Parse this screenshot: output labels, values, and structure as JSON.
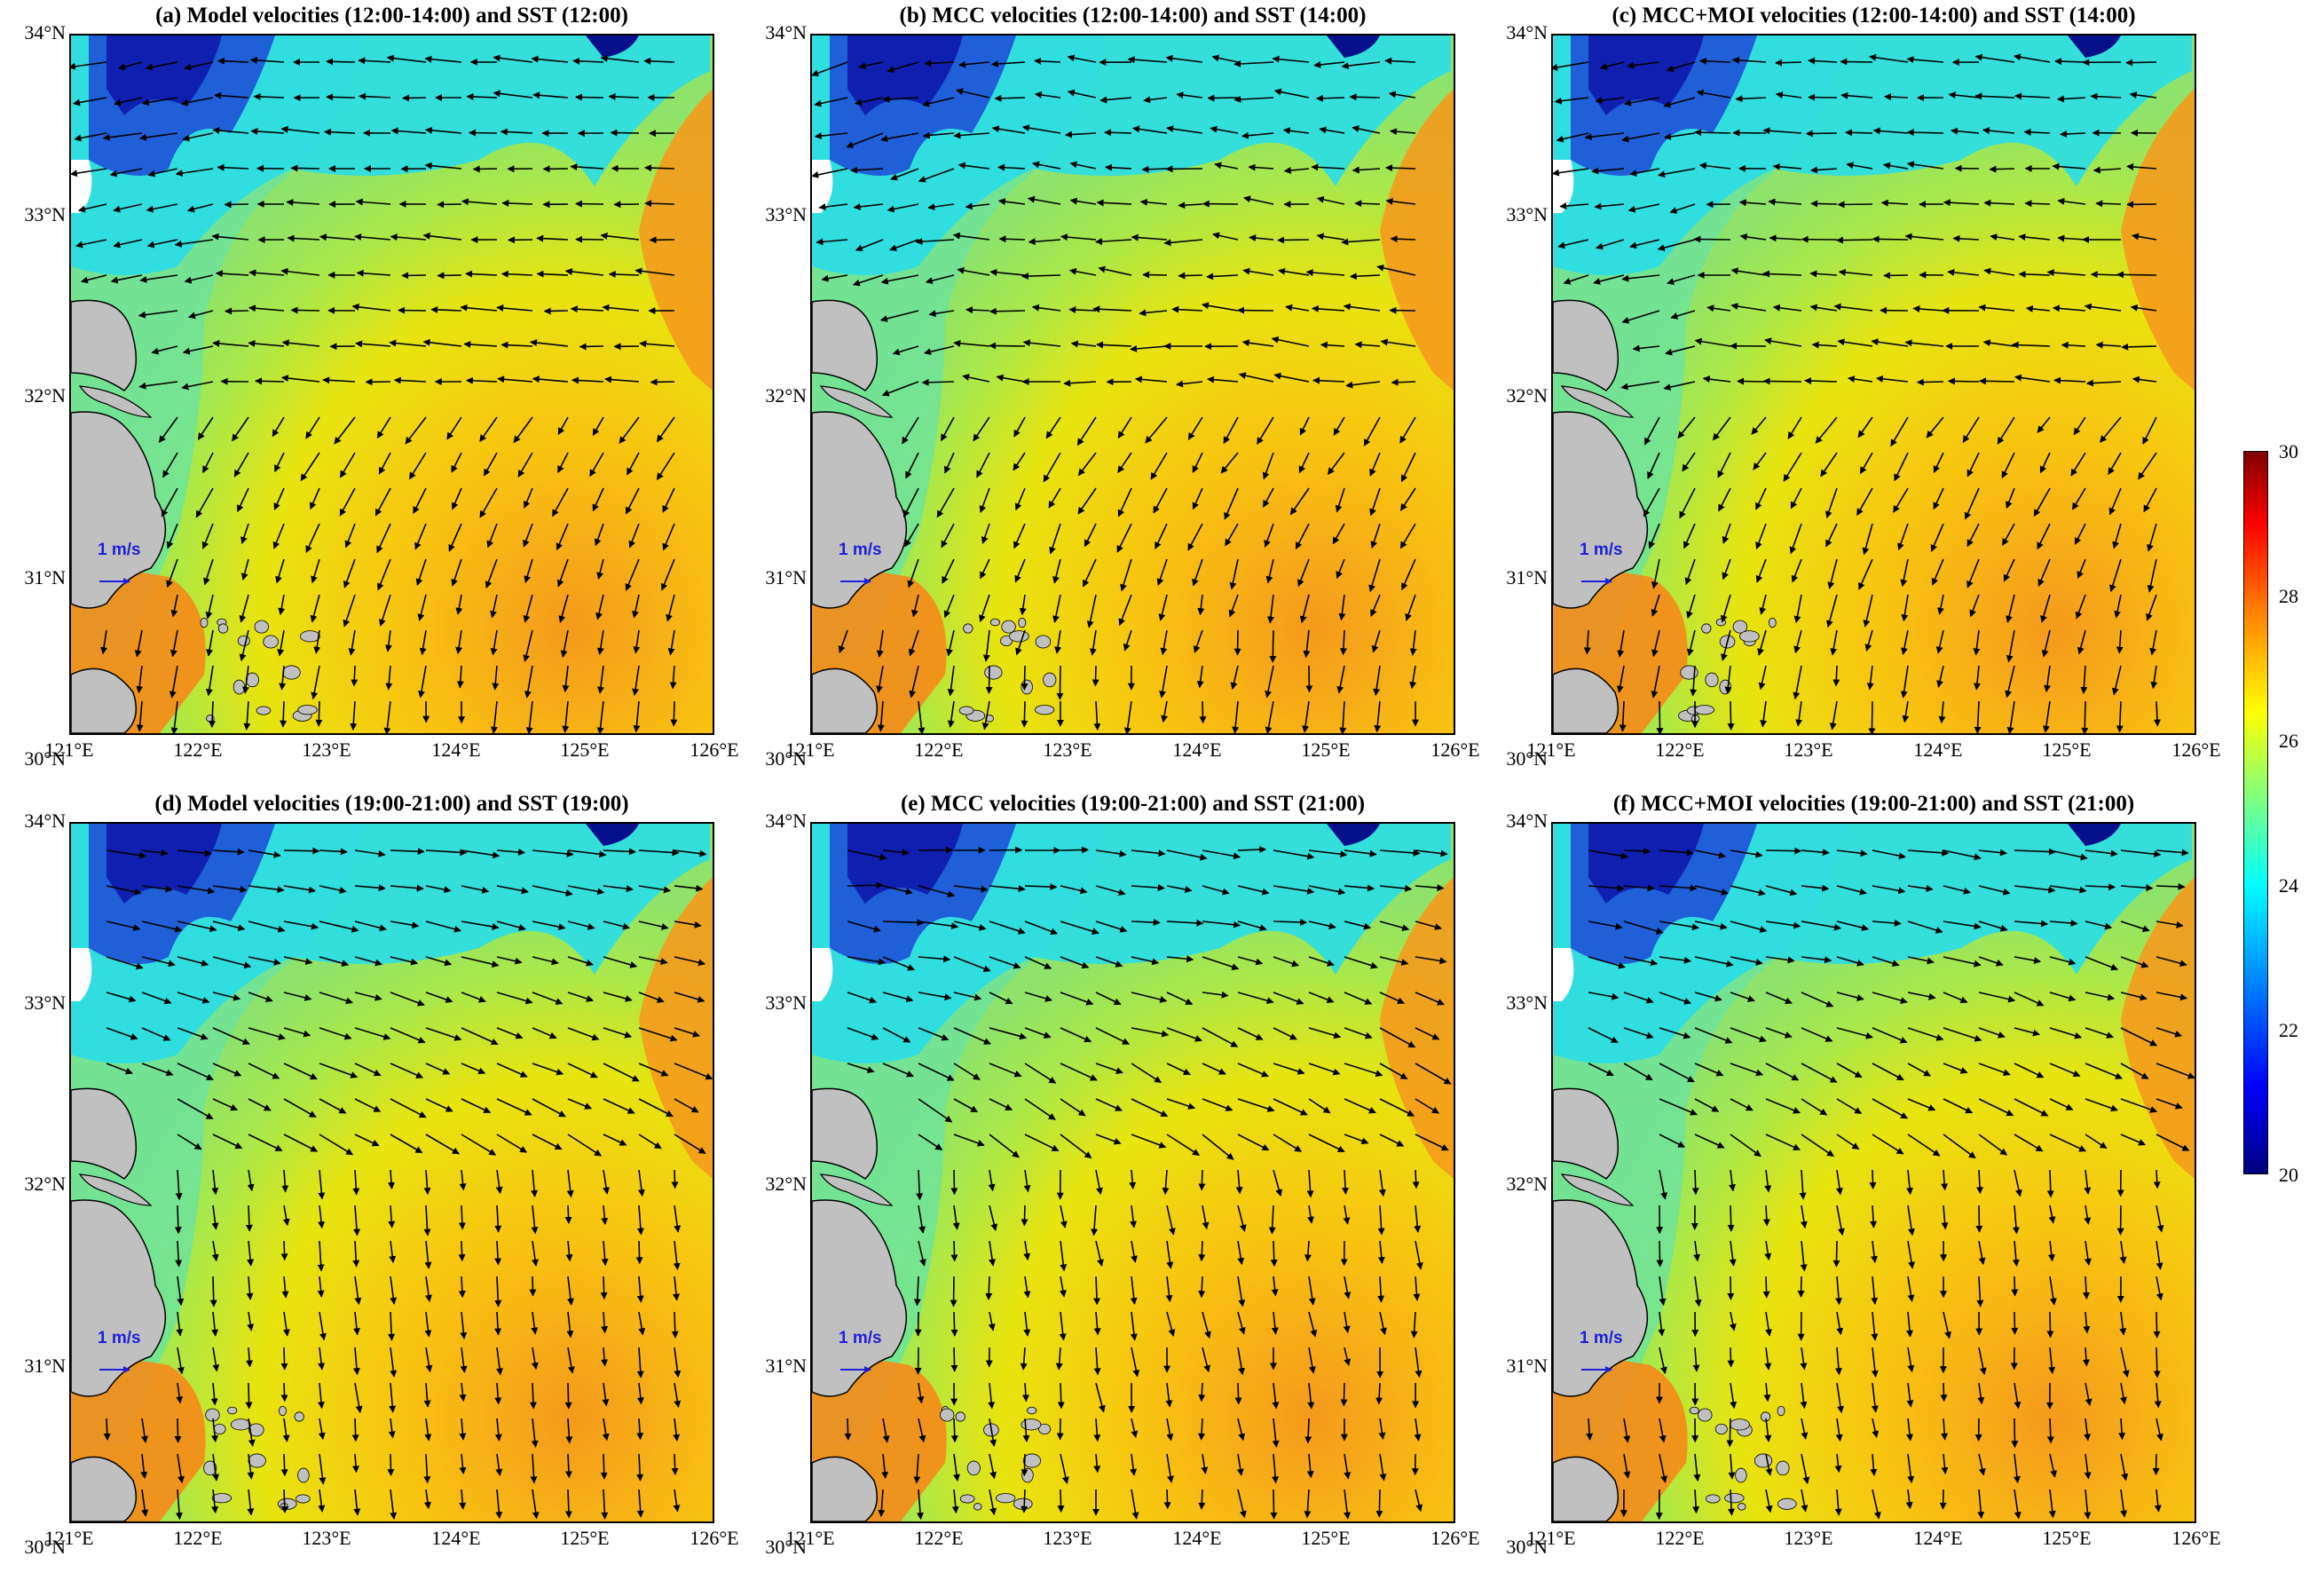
{
  "panels": [
    {
      "id": "a",
      "title": "(a) Model velocities (12:00-14:00) and SST (12:00)",
      "time": "midday",
      "variant": "model"
    },
    {
      "id": "b",
      "title": "(b) MCC velocities (12:00-14:00) and SST (14:00)",
      "time": "midday",
      "variant": "mcc"
    },
    {
      "id": "c",
      "title": "(c) MCC+MOI velocities (12:00-14:00) and SST (14:00)",
      "time": "midday",
      "variant": "moi"
    },
    {
      "id": "d",
      "title": "(d) Model velocities (19:00-21:00) and SST (19:00)",
      "time": "evening",
      "variant": "model"
    },
    {
      "id": "e",
      "title": "(e) MCC velocities (19:00-21:00) and SST (21:00)",
      "time": "evening",
      "variant": "mcc"
    },
    {
      "id": "f",
      "title": "(f) MCC+MOI velocities (19:00-21:00) and SST (21:00)",
      "time": "evening",
      "variant": "moi"
    }
  ],
  "axes": {
    "lat_ticks": [
      "34°N",
      "33°N",
      "32°N",
      "31°N",
      "30°N"
    ],
    "lon_ticks": [
      "121°E",
      "122°E",
      "123°E",
      "124°E",
      "125°E",
      "126°E"
    ],
    "lat_range": [
      30,
      34
    ],
    "lon_range": [
      121,
      126
    ]
  },
  "scale_label": "1 m/s",
  "scale_color": "#1f1fd8",
  "colorbar": {
    "min": 20,
    "max": 30,
    "tick_labels": [
      "30",
      "28",
      "26",
      "24",
      "22",
      "20"
    ],
    "colors": [
      "#00007f",
      "#0000ff",
      "#007fff",
      "#00ffff",
      "#7fff7f",
      "#ffff00",
      "#ff7f00",
      "#ff0000",
      "#7f0000"
    ]
  },
  "land_color": "#c0c0c0",
  "vector_color": "#000000"
}
